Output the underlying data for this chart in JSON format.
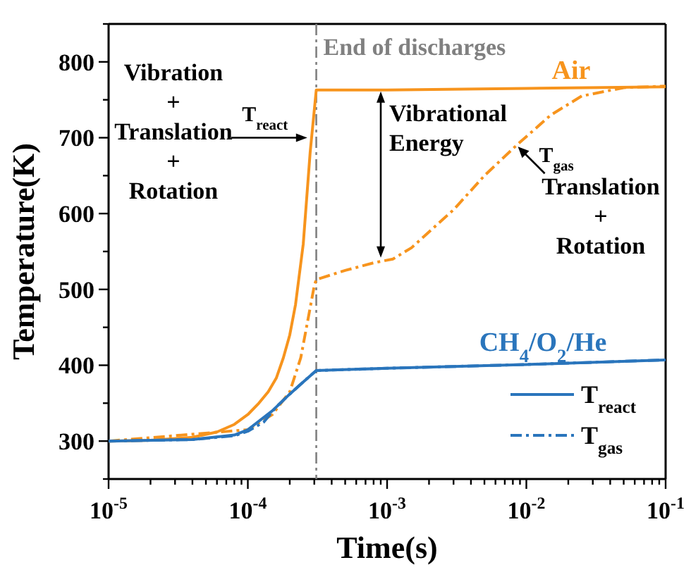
{
  "chart_data": {
    "type": "line",
    "xlabel": "Time(s)",
    "ylabel": "Temperature(K)",
    "log": "x",
    "xlim": [
      1e-05,
      0.1
    ],
    "xticks": [
      {
        "value": 1e-05,
        "label": "10$^{-5}$"
      },
      {
        "value": 2e-05,
        "label": null
      },
      {
        "value": 3e-05,
        "label": null
      },
      {
        "value": 4e-05,
        "label": null
      },
      {
        "value": 5e-05,
        "label": null
      },
      {
        "value": 6e-05,
        "label": null
      },
      {
        "value": 7e-05,
        "label": null
      },
      {
        "value": 8e-05,
        "label": null
      },
      {
        "value": 9e-05,
        "label": null
      },
      {
        "value": 0.0001,
        "label": "10$^{-4}$"
      },
      {
        "value": 0.0002,
        "label": null
      },
      {
        "value": 0.0003,
        "label": null
      },
      {
        "value": 0.0004,
        "label": null
      },
      {
        "value": 0.0005,
        "label": null
      },
      {
        "value": 0.0006,
        "label": null
      },
      {
        "value": 0.0007,
        "label": null
      },
      {
        "value": 0.0008,
        "label": null
      },
      {
        "value": 0.0009,
        "label": null
      },
      {
        "value": 0.001,
        "label": "10$^{-3}$"
      },
      {
        "value": 0.002,
        "label": null
      },
      {
        "value": 0.003,
        "label": null
      },
      {
        "value": 0.004,
        "label": null
      },
      {
        "value": 0.005,
        "label": null
      },
      {
        "value": 0.006,
        "label": null
      },
      {
        "value": 0.007,
        "label": null
      },
      {
        "value": 0.008,
        "label": null
      },
      {
        "value": 0.009,
        "label": null
      },
      {
        "value": 0.01,
        "label": "10$^{-2}$"
      },
      {
        "value": 0.02,
        "label": null
      },
      {
        "value": 0.03,
        "label": null
      },
      {
        "value": 0.04,
        "label": null
      },
      {
        "value": 0.05,
        "label": null
      },
      {
        "value": 0.06,
        "label": null
      },
      {
        "value": 0.07,
        "label": null
      },
      {
        "value": 0.08,
        "label": null
      },
      {
        "value": 0.09,
        "label": null
      },
      {
        "value": 0.1,
        "label": "10$^{-1}$"
      }
    ],
    "ylim": [
      250,
      850
    ],
    "yticks": [
      {
        "value": 250,
        "label": null
      },
      300,
      {
        "value": 350,
        "label": null
      },
      400,
      {
        "value": 450,
        "label": null
      },
      500,
      {
        "value": 550,
        "label": null
      },
      600,
      {
        "value": 650,
        "label": null
      },
      700,
      {
        "value": 750,
        "label": null
      },
      800,
      {
        "value": 850,
        "label": null
      }
    ],
    "grid": false,
    "legend": "bottom right",
    "marker": "none",
    "series": [
      {
        "color": "#f7941d",
        "line_style": "solid",
        "x": [
          1e-05,
          2e-05,
          4e-05,
          6e-05,
          8e-05,
          0.0001,
          0.00012,
          0.00014,
          0.00016,
          0.00018,
          0.0002,
          0.00022,
          0.00025,
          0.00028,
          0.00031,
          0.001,
          0.01,
          0.1
        ],
        "values": [
          300,
          301,
          305,
          312,
          322,
          335,
          350,
          365,
          383,
          410,
          440,
          480,
          560,
          680,
          763,
          763,
          765,
          767
        ]
      },
      {
        "color": "#f7941d",
        "line_style": "dashed",
        "x": [
          1e-05,
          0.0001,
          0.00015,
          0.0002,
          0.00024,
          0.00027,
          0.0003,
          0.00031,
          0.0005,
          0.0008,
          0.0011,
          0.0015,
          0.003,
          0.005,
          0.0085,
          0.015,
          0.025,
          0.05,
          0.1
        ],
        "values": [
          300,
          315,
          335,
          365,
          410,
          460,
          505,
          513,
          525,
          535,
          540,
          555,
          605,
          650,
          690,
          730,
          755,
          766,
          768
        ]
      },
      {
        "name": "T$_{react}$",
        "color": "#2a75bc",
        "line_style": "solid",
        "x": [
          1e-05,
          4e-05,
          8e-05,
          0.0001,
          0.00015,
          0.0002,
          0.00025,
          0.00031,
          0.001,
          0.01,
          0.1
        ],
        "values": [
          300,
          302,
          308,
          315,
          340,
          362,
          378,
          393,
          396,
          401,
          407
        ]
      },
      {
        "name": "T$_{gas}$",
        "color": "#2a75bc",
        "line_style": "dashed",
        "x": [
          1e-05,
          4e-05,
          8e-05,
          0.0001,
          0.00013,
          0.00016,
          0.0002,
          0.00025,
          0.00031,
          0.001,
          0.01,
          0.1
        ],
        "values": [
          300,
          302,
          307,
          313,
          325,
          345,
          362,
          378,
          393,
          396,
          401,
          407
        ]
      }
    ],
    "ref_lines": [
      {
        "axis": "x",
        "value": 0.00031,
        "label": "End of discharges",
        "color": "#808080",
        "line_style": "dashed"
      }
    ],
    "annotations": [
      "Air",
      "CH$_{4}$/O$_{2}$/He",
      "Vibration\n+\nTranslation\n+\nRotation",
      {
        "text": "T$_{react}$",
        "x": 0.00028,
        "y": 700
      },
      "Vibrational\nEnergy",
      {
        "text": "T$_{gas}$",
        "x": 0.0085,
        "y": 690
      },
      "Translation\n+\nRotation"
    ]
  }
}
